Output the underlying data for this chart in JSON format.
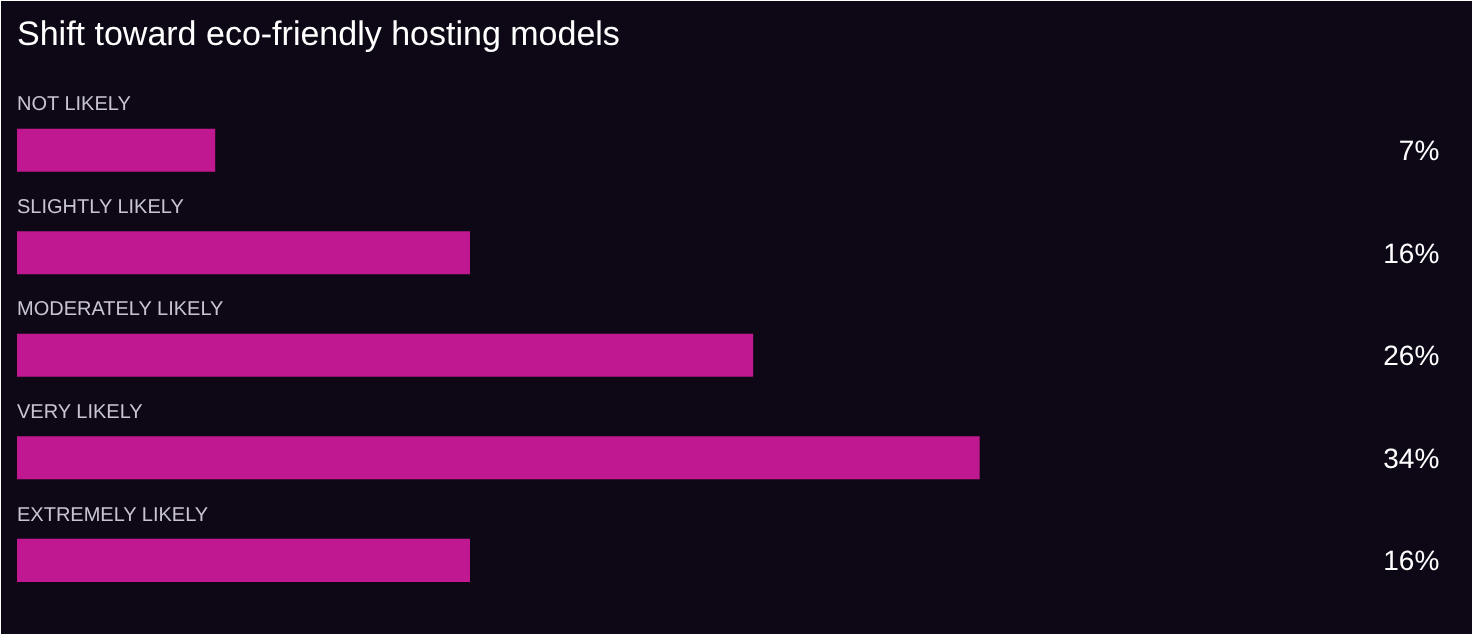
{
  "chart_data": {
    "type": "bar",
    "orientation": "horizontal",
    "title": "Shift toward eco-friendly hosting models",
    "categories": [
      "NOT LIKELY",
      "SLIGHTLY LIKELY",
      "MODERATELY  LIKELY",
      "VERY LIKELY",
      "EXTREMELY LIKELY"
    ],
    "values": [
      7,
      16,
      26,
      34,
      16
    ],
    "color": "#c01890",
    "value_labels": [
      "7%",
      "16%",
      "26%",
      "34%",
      "16%"
    ]
  }
}
